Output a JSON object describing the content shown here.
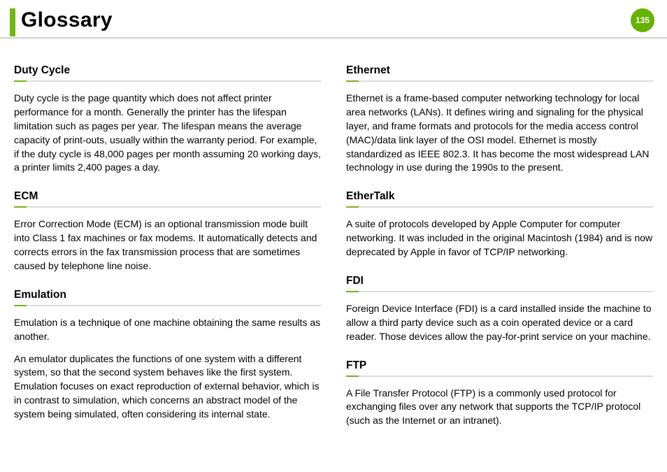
{
  "page": {
    "title": "Glossary",
    "number": "135"
  },
  "colors": {
    "accent": "#6fb817",
    "badge": "#65b300",
    "rule": "#dcdcdc",
    "header_rule_top": "#cfcfcf",
    "header_rule_bottom": "#eaeaea",
    "text": "#000000",
    "background": "#ffffff"
  },
  "left": {
    "e0": {
      "term": "Duty Cycle",
      "desc": "Duty cycle is the page quantity which does not affect printer performance for a month. Generally the printer has the lifespan limitation such as pages per year. The lifespan means the average capacity of print-outs, usually within the warranty period. For example, if the duty cycle is 48,000 pages per month assuming 20 working days, a printer limits 2,400 pages a day."
    },
    "e1": {
      "term": "ECM",
      "desc": "Error Correction Mode (ECM) is an optional transmission mode built into Class 1 fax machines or fax modems. It automatically detects and corrects errors in the fax transmission process that are sometimes caused by telephone line noise."
    },
    "e2": {
      "term": "Emulation",
      "desc1": "Emulation is a technique of one machine obtaining the same results as another.",
      "desc2": "An emulator duplicates the functions of one system with a different system, so that the second system behaves like the first system. Emulation focuses on exact reproduction of external behavior, which is in contrast to simulation, which concerns an abstract model of the system being simulated, often considering its internal state."
    }
  },
  "right": {
    "e0": {
      "term": "Ethernet",
      "desc": "Ethernet is a frame-based computer networking technology for local area networks (LANs). It defines wiring and signaling for the physical layer, and frame formats and protocols for the media access control (MAC)/data link layer of the OSI model. Ethernet is mostly standardized as IEEE 802.3. It has become the most widespread LAN technology in use during the 1990s to the present."
    },
    "e1": {
      "term": "EtherTalk",
      "desc": "A suite of protocols developed by Apple Computer for computer networking. It was included in the original Macintosh (1984) and is now deprecated by Apple in favor of TCP/IP networking."
    },
    "e2": {
      "term": "FDI",
      "desc": "Foreign Device Interface (FDI) is a card installed inside the machine to allow a third party device such as a coin operated device or a card reader. Those devices allow the pay-for-print service on your machine."
    },
    "e3": {
      "term": "FTP",
      "desc": "A File Transfer Protocol (FTP) is a commonly used protocol for exchanging files over any network that supports the TCP/IP protocol (such as the Internet or an intranet)."
    }
  }
}
